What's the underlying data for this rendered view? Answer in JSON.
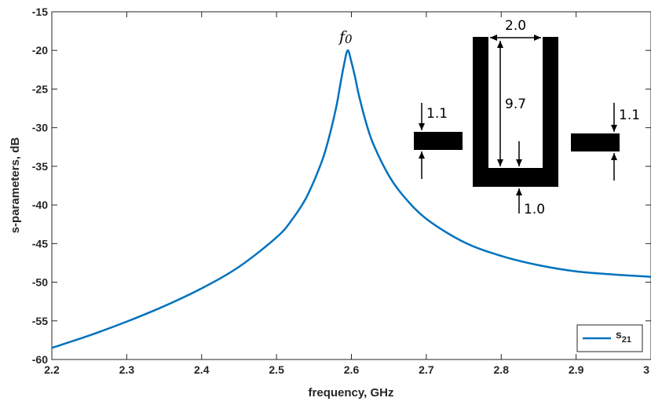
{
  "chart_data": {
    "type": "line",
    "title": "",
    "xlabel": "frequency, GHz",
    "ylabel": "s-parameters, dB",
    "xlim": [
      2.2,
      3.0
    ],
    "ylim": [
      -60,
      -15
    ],
    "xticks": [
      "2.2",
      "2.3",
      "2.4",
      "2.5",
      "2.6",
      "2.7",
      "2.8",
      "2.9",
      "3"
    ],
    "yticks": [
      "-15",
      "-20",
      "-25",
      "-30",
      "-35",
      "-40",
      "-45",
      "-50",
      "-55",
      "-60"
    ],
    "grid": false,
    "legend_position": "bottom-right",
    "series": [
      {
        "name": "s21",
        "color": "#0072BD",
        "x": [
          2.2,
          2.25,
          2.3,
          2.35,
          2.4,
          2.45,
          2.5,
          2.52,
          2.54,
          2.56,
          2.57,
          2.58,
          2.585,
          2.59,
          2.595,
          2.6,
          2.605,
          2.61,
          2.62,
          2.63,
          2.65,
          2.67,
          2.7,
          2.75,
          2.8,
          2.85,
          2.9,
          2.95,
          3.0
        ],
        "y": [
          -58.5,
          -56.9,
          -55.1,
          -53.1,
          -50.8,
          -48.0,
          -44.2,
          -42.0,
          -39.0,
          -34.5,
          -31.3,
          -27.2,
          -24.5,
          -21.9,
          -20.0,
          -21.5,
          -23.5,
          -25.8,
          -29.5,
          -32.3,
          -36.2,
          -38.9,
          -41.8,
          -44.8,
          -46.6,
          -47.8,
          -48.6,
          -49.0,
          -49.3
        ]
      }
    ],
    "legend": {
      "label_main": "s",
      "label_sub": "21"
    },
    "annotations": {
      "peak_label": "f",
      "peak_sub": "0",
      "dim_gap_width": "2.0",
      "dim_arm_length": "9.7",
      "dim_left_feed": "1.1",
      "dim_right_feed": "1.1",
      "dim_base": "1.0"
    }
  }
}
